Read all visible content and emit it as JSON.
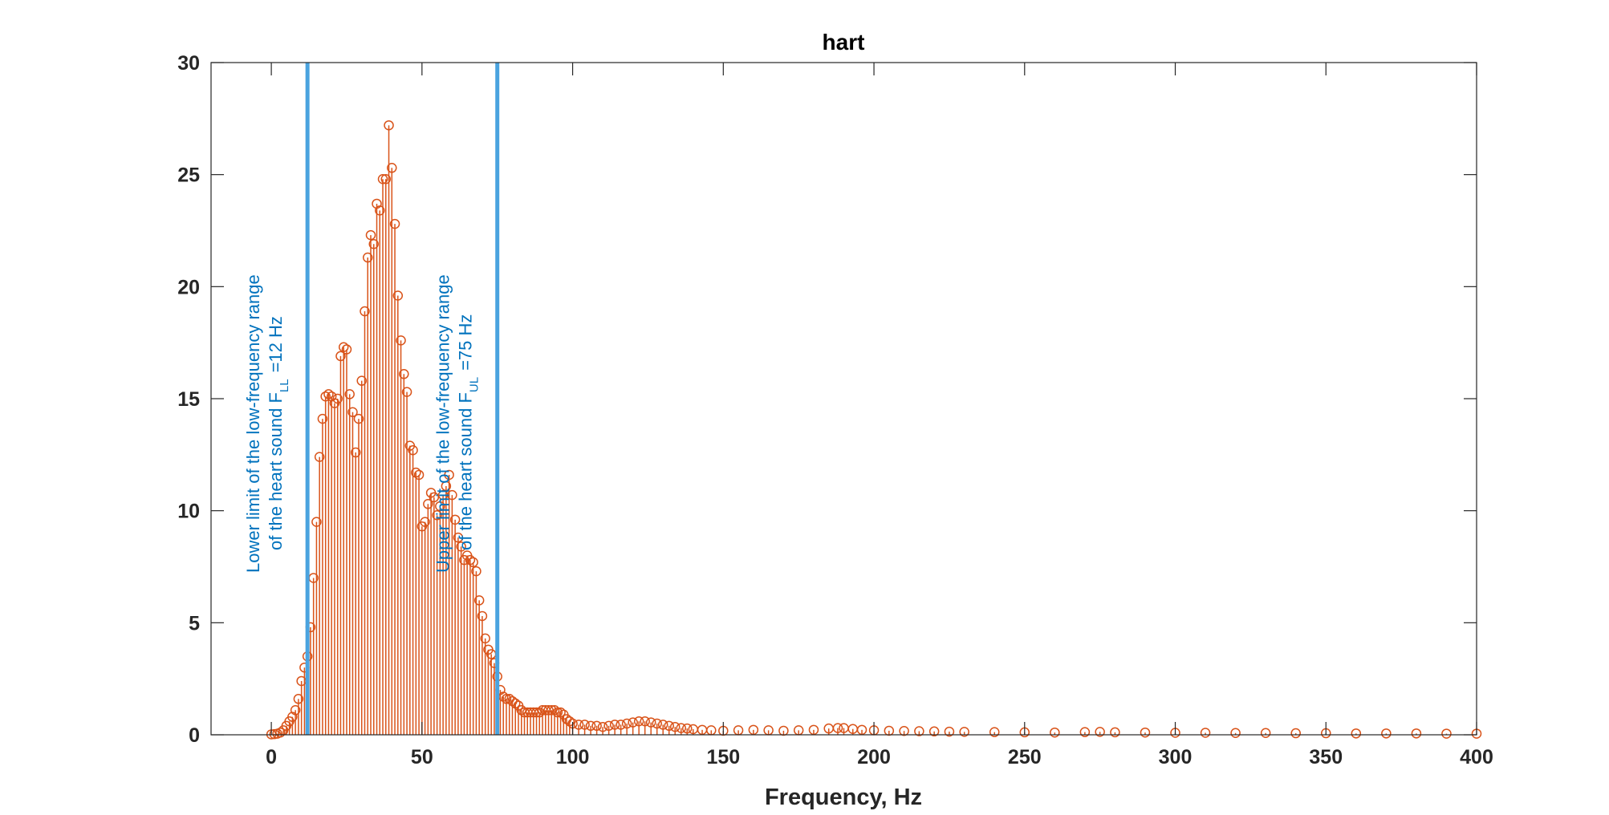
{
  "chart_data": {
    "type": "stem",
    "title": "hart",
    "xlabel": "Frequency, Hz",
    "ylabel": "",
    "xlim": [
      -20,
      400
    ],
    "ylim": [
      0,
      30
    ],
    "xticks": [
      0,
      50,
      100,
      150,
      200,
      250,
      300,
      350,
      400
    ],
    "yticks": [
      0,
      5,
      10,
      15,
      20,
      25,
      30
    ],
    "grid": false,
    "colors": {
      "stem": "#d95319",
      "vline": "#4aa3df",
      "annot": "#0072bd"
    },
    "vlines": [
      {
        "x": 12,
        "lines": [
          "Lower limit of the low-frequency range",
          "of the heart sound F"
        ],
        "sub": "LL",
        "suffix": "=12 Hz"
      },
      {
        "x": 75,
        "lines": [
          "Upper limit of the low-frequency range",
          "of the heart sound F"
        ],
        "sub": "UL",
        "suffix": "=75 Hz"
      }
    ],
    "points": [
      [
        0,
        0.02
      ],
      [
        1,
        0.03
      ],
      [
        2,
        0.05
      ],
      [
        3,
        0.1
      ],
      [
        4,
        0.2
      ],
      [
        5,
        0.4
      ],
      [
        6,
        0.6
      ],
      [
        7,
        0.8
      ],
      [
        8,
        1.1
      ],
      [
        9,
        1.6
      ],
      [
        10,
        2.4
      ],
      [
        11,
        3.0
      ],
      [
        12,
        3.5
      ],
      [
        13,
        4.8
      ],
      [
        14,
        7.0
      ],
      [
        15,
        9.5
      ],
      [
        16,
        12.4
      ],
      [
        17,
        14.1
      ],
      [
        18,
        15.1
      ],
      [
        19,
        15.2
      ],
      [
        20,
        15.1
      ],
      [
        21,
        14.8
      ],
      [
        22,
        15.0
      ],
      [
        23,
        16.9
      ],
      [
        24,
        17.3
      ],
      [
        25,
        17.2
      ],
      [
        26,
        15.2
      ],
      [
        27,
        14.4
      ],
      [
        28,
        12.6
      ],
      [
        29,
        14.1
      ],
      [
        30,
        15.8
      ],
      [
        31,
        18.9
      ],
      [
        32,
        21.3
      ],
      [
        33,
        22.3
      ],
      [
        34,
        21.9
      ],
      [
        35,
        23.7
      ],
      [
        36,
        23.4
      ],
      [
        37,
        24.8
      ],
      [
        38,
        24.8
      ],
      [
        39,
        27.2
      ],
      [
        40,
        25.3
      ],
      [
        41,
        22.8
      ],
      [
        42,
        19.6
      ],
      [
        43,
        17.6
      ],
      [
        44,
        16.1
      ],
      [
        45,
        15.3
      ],
      [
        46,
        12.9
      ],
      [
        47,
        12.7
      ],
      [
        48,
        11.7
      ],
      [
        49,
        11.6
      ],
      [
        50,
        9.3
      ],
      [
        51,
        9.5
      ],
      [
        52,
        10.3
      ],
      [
        53,
        10.8
      ],
      [
        54,
        10.6
      ],
      [
        55,
        9.8
      ],
      [
        56,
        10.2
      ],
      [
        57,
        10.7
      ],
      [
        58,
        11.1
      ],
      [
        59,
        11.6
      ],
      [
        60,
        10.7
      ],
      [
        61,
        9.6
      ],
      [
        62,
        8.8
      ],
      [
        63,
        8.4
      ],
      [
        64,
        7.8
      ],
      [
        65,
        8.0
      ],
      [
        66,
        7.8
      ],
      [
        67,
        7.7
      ],
      [
        68,
        7.3
      ],
      [
        69,
        6.0
      ],
      [
        70,
        5.3
      ],
      [
        71,
        4.3
      ],
      [
        72,
        3.8
      ],
      [
        73,
        3.6
      ],
      [
        74,
        3.2
      ],
      [
        75,
        2.6
      ],
      [
        76,
        2.0
      ],
      [
        77,
        1.7
      ],
      [
        78,
        1.6
      ],
      [
        79,
        1.6
      ],
      [
        80,
        1.5
      ],
      [
        81,
        1.4
      ],
      [
        82,
        1.3
      ],
      [
        83,
        1.1
      ],
      [
        84,
        1.0
      ],
      [
        85,
        1.0
      ],
      [
        86,
        1.0
      ],
      [
        87,
        1.0
      ],
      [
        88,
        1.0
      ],
      [
        89,
        1.0
      ],
      [
        90,
        1.1
      ],
      [
        91,
        1.1
      ],
      [
        92,
        1.1
      ],
      [
        93,
        1.1
      ],
      [
        94,
        1.1
      ],
      [
        95,
        1.0
      ],
      [
        96,
        1.0
      ],
      [
        97,
        0.9
      ],
      [
        98,
        0.7
      ],
      [
        99,
        0.6
      ],
      [
        100,
        0.5
      ],
      [
        102,
        0.45
      ],
      [
        104,
        0.45
      ],
      [
        106,
        0.4
      ],
      [
        108,
        0.4
      ],
      [
        110,
        0.35
      ],
      [
        112,
        0.4
      ],
      [
        114,
        0.45
      ],
      [
        116,
        0.45
      ],
      [
        118,
        0.5
      ],
      [
        120,
        0.55
      ],
      [
        122,
        0.6
      ],
      [
        124,
        0.6
      ],
      [
        126,
        0.55
      ],
      [
        128,
        0.5
      ],
      [
        130,
        0.45
      ],
      [
        132,
        0.4
      ],
      [
        134,
        0.35
      ],
      [
        136,
        0.3
      ],
      [
        138,
        0.28
      ],
      [
        140,
        0.25
      ],
      [
        143,
        0.22
      ],
      [
        146,
        0.2
      ],
      [
        150,
        0.18
      ],
      [
        155,
        0.2
      ],
      [
        160,
        0.22
      ],
      [
        165,
        0.2
      ],
      [
        170,
        0.18
      ],
      [
        175,
        0.2
      ],
      [
        180,
        0.22
      ],
      [
        185,
        0.28
      ],
      [
        188,
        0.3
      ],
      [
        190,
        0.3
      ],
      [
        193,
        0.26
      ],
      [
        196,
        0.22
      ],
      [
        200,
        0.2
      ],
      [
        205,
        0.18
      ],
      [
        210,
        0.17
      ],
      [
        215,
        0.16
      ],
      [
        220,
        0.15
      ],
      [
        225,
        0.14
      ],
      [
        230,
        0.13
      ],
      [
        240,
        0.12
      ],
      [
        250,
        0.11
      ],
      [
        260,
        0.1
      ],
      [
        270,
        0.12
      ],
      [
        275,
        0.13
      ],
      [
        280,
        0.11
      ],
      [
        290,
        0.1
      ],
      [
        300,
        0.09
      ],
      [
        310,
        0.09
      ],
      [
        320,
        0.08
      ],
      [
        330,
        0.08
      ],
      [
        340,
        0.07
      ],
      [
        350,
        0.07
      ],
      [
        360,
        0.06
      ],
      [
        370,
        0.06
      ],
      [
        380,
        0.06
      ],
      [
        390,
        0.05
      ],
      [
        400,
        0.05
      ]
    ]
  }
}
